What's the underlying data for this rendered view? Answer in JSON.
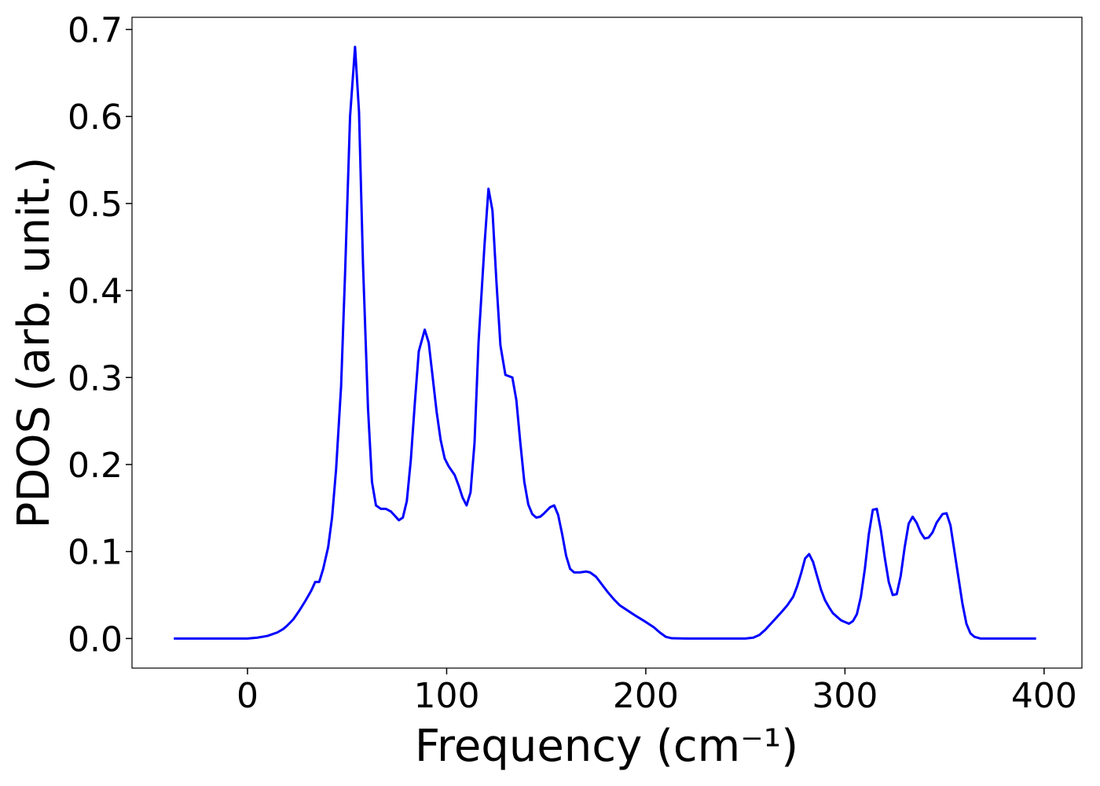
{
  "chart_data": {
    "type": "line",
    "xlabel": "Frequency (cm⁻¹)",
    "ylabel": "PDOS (arb. unit.)",
    "xlim": [
      -58,
      419
    ],
    "ylim": [
      -0.034,
      0.714
    ],
    "xticks": [
      0,
      100,
      200,
      300,
      400
    ],
    "yticks": [
      {
        "value": 0,
        "label": "0.0"
      },
      0.1,
      0.2,
      0.3,
      0.4,
      0.5,
      0.6,
      0.7
    ],
    "x": [
      -37,
      -20,
      0,
      5,
      10,
      15,
      18,
      20,
      23,
      26,
      29,
      32,
      34,
      36,
      38,
      40.5,
      42.5,
      44.5,
      47,
      49,
      51.5,
      54,
      56,
      58,
      60.5,
      62.5,
      64.5,
      67,
      69.5,
      72,
      74,
      76,
      78,
      80,
      82,
      84,
      86,
      89,
      91,
      93,
      95,
      97,
      99,
      101,
      104,
      106,
      108,
      110,
      112,
      114,
      116,
      119,
      121,
      123,
      125,
      127,
      129.5,
      133,
      135,
      137,
      139,
      141,
      143,
      145,
      147,
      149,
      152,
      154,
      156,
      158,
      160,
      162,
      164,
      167,
      170,
      172,
      175,
      178,
      181,
      184,
      187,
      191,
      195,
      200,
      204,
      207,
      210,
      213,
      220,
      250,
      254,
      257,
      260,
      264,
      268,
      271,
      274,
      276,
      278,
      280,
      282,
      284,
      286,
      288,
      290,
      292,
      294,
      296,
      298,
      300,
      302,
      304,
      306,
      308,
      310,
      312,
      314,
      316,
      318,
      320,
      322,
      324,
      326,
      328,
      330,
      332,
      334,
      336,
      338,
      340,
      342,
      344,
      346,
      349,
      351,
      353,
      355,
      357,
      359,
      361,
      363,
      365,
      368,
      396
    ],
    "series": [
      {
        "name": "PDOS",
        "color": "#0000ff",
        "values": [
          0,
          0,
          0,
          0.001,
          0.003,
          0.007,
          0.011,
          0.015,
          0.022,
          0.032,
          0.043,
          0.055,
          0.065,
          0.065,
          0.08,
          0.105,
          0.14,
          0.195,
          0.29,
          0.42,
          0.6,
          0.68,
          0.605,
          0.43,
          0.265,
          0.18,
          0.153,
          0.149,
          0.149,
          0.146,
          0.141,
          0.136,
          0.139,
          0.158,
          0.205,
          0.27,
          0.33,
          0.355,
          0.34,
          0.3,
          0.26,
          0.228,
          0.207,
          0.198,
          0.188,
          0.176,
          0.162,
          0.153,
          0.168,
          0.225,
          0.34,
          0.452,
          0.517,
          0.492,
          0.41,
          0.337,
          0.303,
          0.3,
          0.274,
          0.225,
          0.18,
          0.154,
          0.143,
          0.139,
          0.14,
          0.144,
          0.151,
          0.153,
          0.142,
          0.12,
          0.095,
          0.08,
          0.076,
          0.076,
          0.077,
          0.076,
          0.071,
          0.062,
          0.053,
          0.045,
          0.038,
          0.032,
          0.026,
          0.019,
          0.013,
          0.007,
          0.002,
          0.0003,
          0,
          0,
          0.001,
          0.004,
          0.01,
          0.02,
          0.03,
          0.038,
          0.048,
          0.06,
          0.075,
          0.092,
          0.097,
          0.088,
          0.072,
          0.056,
          0.044,
          0.036,
          0.029,
          0.025,
          0.021,
          0.019,
          0.017,
          0.02,
          0.028,
          0.048,
          0.08,
          0.12,
          0.148,
          0.149,
          0.125,
          0.093,
          0.065,
          0.05,
          0.051,
          0.072,
          0.105,
          0.132,
          0.14,
          0.133,
          0.122,
          0.115,
          0.116,
          0.122,
          0.133,
          0.143,
          0.144,
          0.13,
          0.1,
          0.07,
          0.04,
          0.017,
          0.006,
          0.002,
          0,
          0
        ]
      }
    ]
  }
}
